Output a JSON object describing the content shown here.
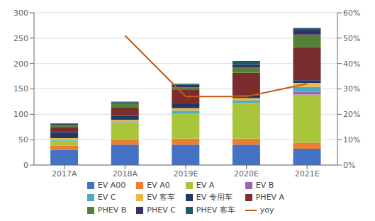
{
  "chart_data": {
    "type": "bar",
    "categories": [
      "2017A",
      "2018A",
      "2019E",
      "2020E",
      "2021E"
    ],
    "series": [
      {
        "name": "EV A00",
        "color": "#4472C4",
        "values": [
          30,
          40,
          40,
          40,
          32
        ]
      },
      {
        "name": "EV A0",
        "color": "#ED7D31",
        "values": [
          8,
          10,
          12,
          12,
          12
        ]
      },
      {
        "name": "EV A",
        "color": "#A9C539",
        "values": [
          10,
          32,
          50,
          70,
          95
        ]
      },
      {
        "name": "EV B",
        "color": "#9E63B5",
        "values": [
          0,
          0,
          0,
          0,
          5
        ]
      },
      {
        "name": "EV C",
        "color": "#4BACC6",
        "values": [
          2,
          2,
          5,
          5,
          10
        ]
      },
      {
        "name": "EV 客车",
        "color": "#F0B64A",
        "values": [
          3,
          5,
          5,
          5,
          8
        ]
      },
      {
        "name": "EV 专用车",
        "color": "#1F3864",
        "values": [
          12,
          8,
          8,
          5,
          5
        ]
      },
      {
        "name": "PHEV A",
        "color": "#7B2C2C",
        "values": [
          10,
          17,
          28,
          45,
          65
        ]
      },
      {
        "name": "PHEV B",
        "color": "#538135",
        "values": [
          4,
          7,
          5,
          10,
          25
        ]
      },
      {
        "name": "PHEV C",
        "color": "#3A2D6B",
        "values": [
          2,
          2,
          5,
          5,
          8
        ]
      },
      {
        "name": "PHEV 客车",
        "color": "#215868",
        "values": [
          1,
          2,
          2,
          8,
          5
        ]
      },
      {
        "name": "yoy",
        "type": "line",
        "axis": "y2",
        "color": "#C55A11",
        "values": [
          null,
          0.51,
          0.27,
          0.27,
          0.32
        ]
      }
    ],
    "ylim": [
      0,
      300
    ],
    "yticks": [
      0,
      50,
      100,
      150,
      200,
      250,
      300
    ],
    "y2lim": [
      0,
      0.6
    ],
    "y2ticks": [
      {
        "value": 0.0,
        "label": "0%"
      },
      {
        "value": 0.1,
        "label": "10%"
      },
      {
        "value": 0.2,
        "label": "20%"
      },
      {
        "value": 0.3,
        "label": "30%"
      },
      {
        "value": 0.4,
        "label": "40%"
      },
      {
        "value": 0.5,
        "label": "50%"
      },
      {
        "value": 0.6,
        "label": "60%"
      }
    ],
    "stacked": true,
    "grid": true,
    "legend": "bottom"
  }
}
